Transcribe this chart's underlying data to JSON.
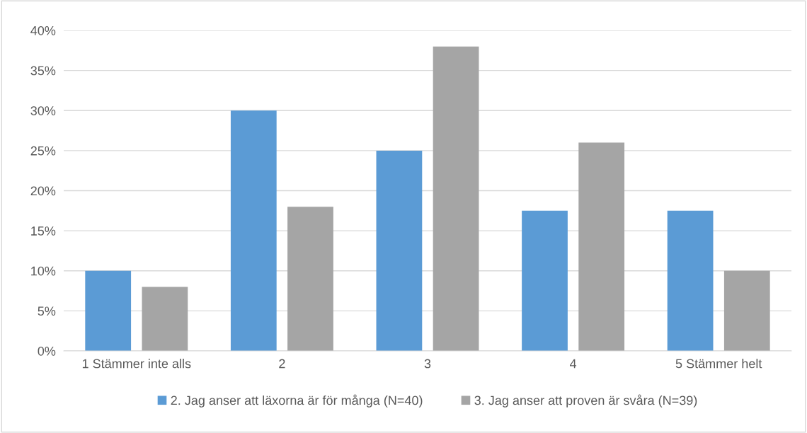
{
  "chart_data": {
    "type": "bar",
    "categories": [
      "1 Stämmer inte alls",
      "2",
      "3",
      "4",
      "5 Stämmer helt"
    ],
    "series": [
      {
        "name": "2. Jag anser att läxorna är för många (N=40)",
        "color": "#5b9bd5",
        "values": [
          10,
          30,
          25,
          17.5,
          17.5
        ]
      },
      {
        "name": "3. Jag anser att proven är svåra (N=39)",
        "color": "#a5a5a5",
        "values": [
          8,
          18,
          38,
          26,
          10
        ]
      }
    ],
    "ylim": [
      0,
      40
    ],
    "yticks": [
      {
        "value": 0,
        "label": "0%"
      },
      {
        "value": 5,
        "label": "5%"
      },
      {
        "value": 10,
        "label": "10%"
      },
      {
        "value": 15,
        "label": "15%"
      },
      {
        "value": 20,
        "label": "20%"
      },
      {
        "value": 25,
        "label": "25%"
      },
      {
        "value": 30,
        "label": "30%"
      },
      {
        "value": 35,
        "label": "35%"
      },
      {
        "value": 40,
        "label": "40%"
      }
    ],
    "grid": "y",
    "legend": "bottom"
  }
}
